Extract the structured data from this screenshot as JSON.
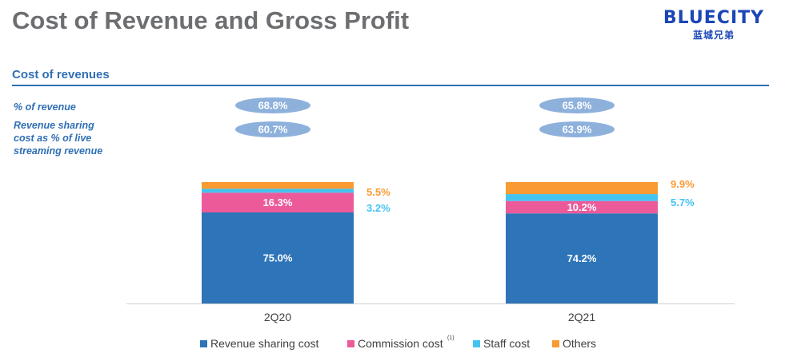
{
  "header": {
    "title": "Cost of Revenue and Gross Profit"
  },
  "logo": {
    "name": "BLUECITY",
    "subtitle": "蓝城兄弟"
  },
  "section": {
    "title": "Cost of revenues"
  },
  "row_labels": {
    "pct_revenue": "% of revenue",
    "rev_sharing": "Revenue sharing cost as % of live streaming revenue"
  },
  "colors": {
    "revenue_sharing": "#2e74b9",
    "commission": "#ec5a9a",
    "staff": "#44c3f1",
    "others": "#f99a33",
    "oval": "#8eb1dc",
    "accent_blue": "#2f6fb5"
  },
  "chart_data": {
    "type": "bar",
    "stacked": true,
    "categories": [
      "2Q20",
      "2Q21"
    ],
    "series": [
      {
        "name": "Revenue sharing cost",
        "values": [
          75.0,
          74.2
        ],
        "labels": [
          "75.0%",
          "74.2%"
        ]
      },
      {
        "name": "Commission cost",
        "footnote": "(1)",
        "values": [
          16.3,
          10.2
        ],
        "labels": [
          "16.3%",
          "10.2%"
        ]
      },
      {
        "name": "Staff cost",
        "values": [
          3.2,
          5.7
        ],
        "labels": [
          "3.2%",
          "5.7%"
        ]
      },
      {
        "name": "Others",
        "values": [
          5.5,
          9.9
        ],
        "labels": [
          "5.5%",
          "9.9%"
        ]
      }
    ],
    "pct_of_revenue": [
      "68.8%",
      "65.8%"
    ],
    "rev_sharing_pct_of_live_streaming": [
      "60.7%",
      "63.9%"
    ],
    "legend_position": "bottom"
  }
}
